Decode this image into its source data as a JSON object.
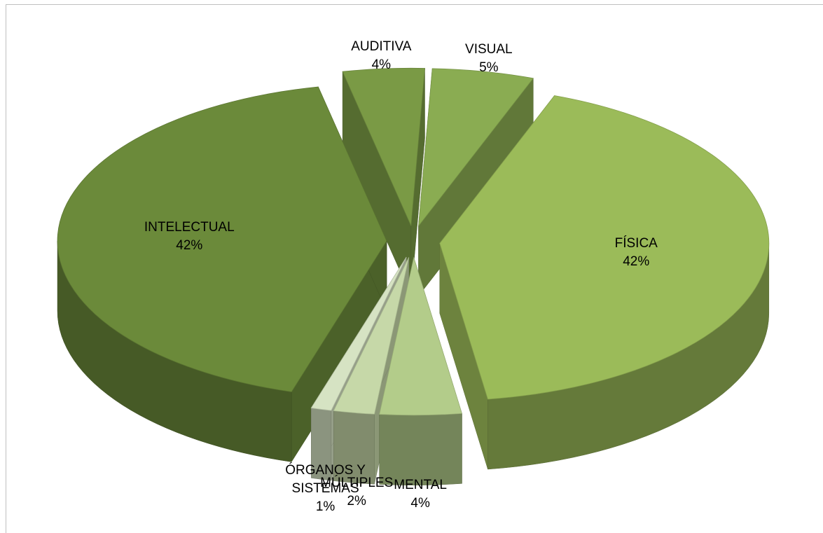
{
  "chart_data": {
    "type": "pie3d",
    "categories": [
      "AUDITIVA",
      "VISUAL",
      "FÍSICA",
      "MENTAL",
      "MÚLTIPLES",
      "ÓRGANOS Y SISTEMAS",
      "INTELECTUAL"
    ],
    "values": [
      4,
      5,
      42,
      4,
      2,
      1,
      42
    ],
    "value_labels": [
      "4%",
      "5%",
      "42%",
      "4%",
      "2%",
      "1%",
      "42%"
    ],
    "colors": [
      "#7a9a45",
      "#8aac52",
      "#9bbb59",
      "#b3cc8a",
      "#c6d8a8",
      "#d6e3c3",
      "#6b8a3a"
    ]
  }
}
